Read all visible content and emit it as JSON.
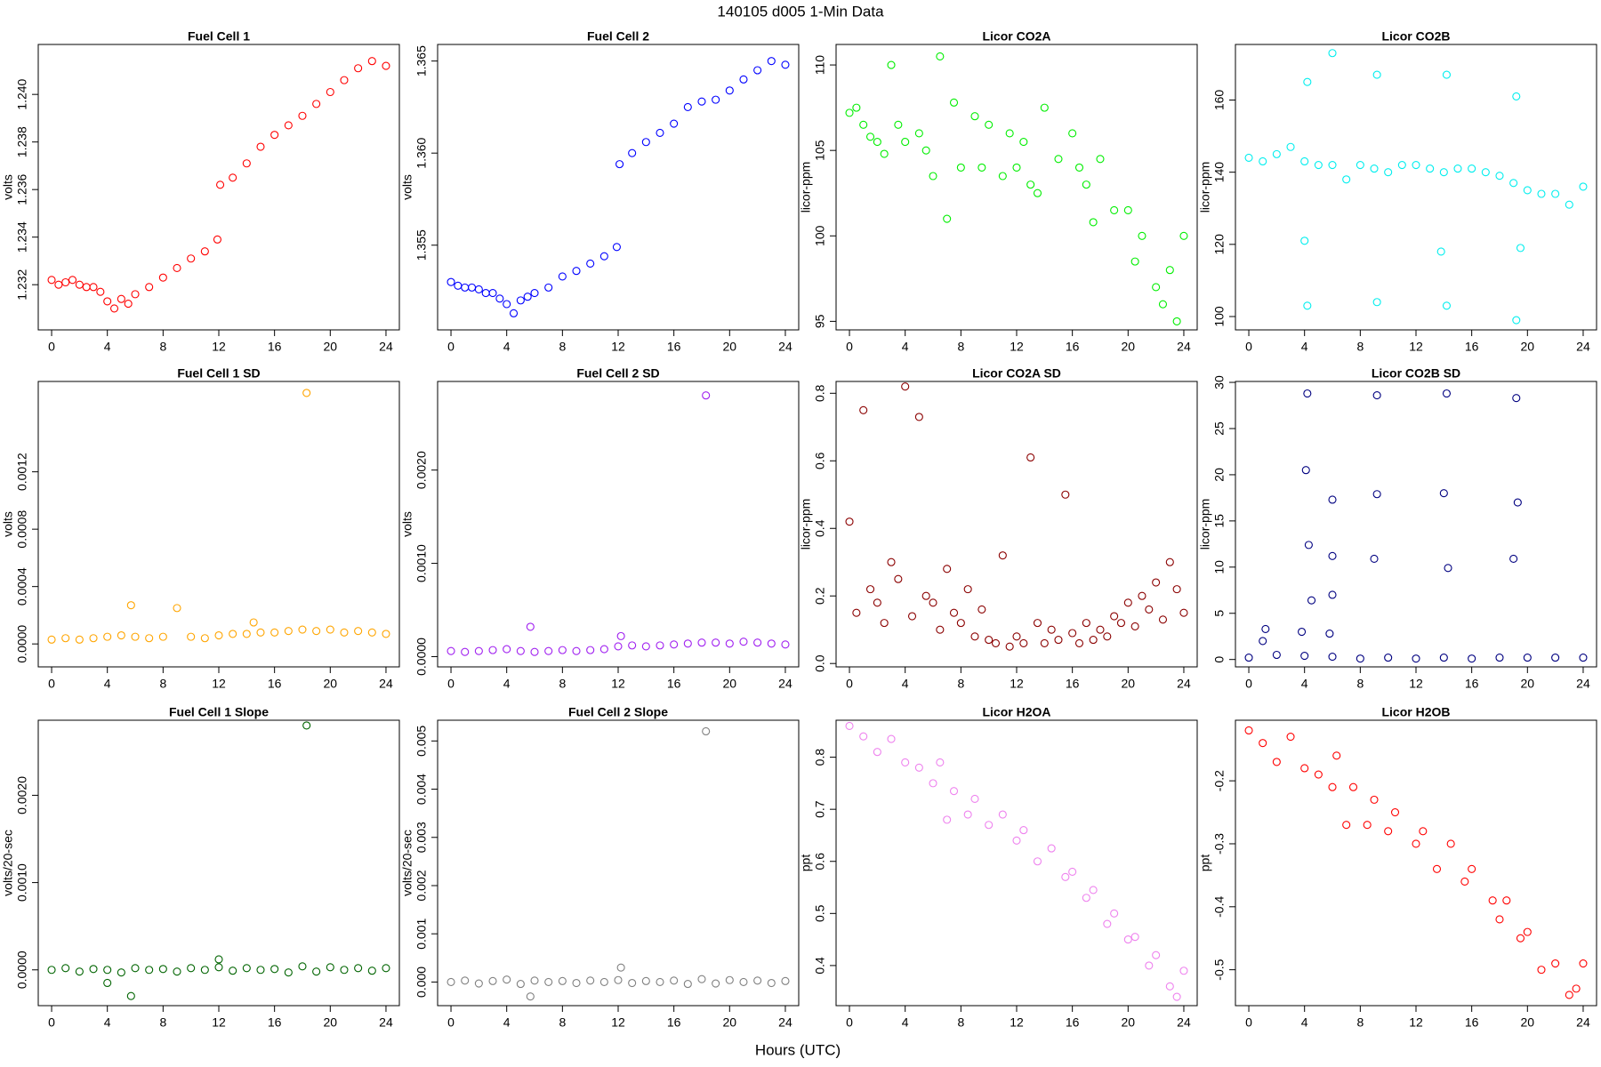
{
  "title": "140105   d005   1-Min Data",
  "x_label": "Hours (UTC)",
  "chart_data": [
    {
      "type": "scatter",
      "title": "Fuel Cell 1",
      "y_label": "volts",
      "color": "#ff0000",
      "x": [
        0,
        0.5,
        1,
        1.5,
        2,
        2.5,
        3,
        3.5,
        4,
        4.5,
        5,
        5.5,
        6,
        7,
        8,
        9,
        10,
        11,
        11.9,
        12.1,
        13,
        14,
        15,
        16,
        17,
        18,
        19,
        20,
        21,
        22,
        23,
        24
      ],
      "values": [
        1.2322,
        1.232,
        1.2321,
        1.2322,
        1.232,
        1.2319,
        1.2319,
        1.2317,
        1.2313,
        1.231,
        1.2314,
        1.2312,
        1.2316,
        1.2319,
        1.2323,
        1.2327,
        1.2331,
        1.2334,
        1.2339,
        1.2362,
        1.2365,
        1.2371,
        1.2378,
        1.2383,
        1.2387,
        1.2391,
        1.2396,
        1.2401,
        1.2406,
        1.2411,
        1.2414,
        1.2412
      ],
      "xlim": [
        -0.96,
        24.96
      ],
      "ylim": [
        1.2301,
        1.2421
      ],
      "xticks": [
        0,
        4,
        8,
        12,
        16,
        20,
        24
      ],
      "yticks": [
        1.232,
        1.234,
        1.236,
        1.238,
        {
          "value": 1.24,
          "label": "1.240"
        }
      ]
    },
    {
      "type": "scatter",
      "title": "Fuel Cell 2",
      "y_label": "volts",
      "color": "#0000ff",
      "x": [
        0,
        0.5,
        1,
        1.5,
        2,
        2.5,
        3,
        3.5,
        4,
        4.5,
        5,
        5.5,
        6,
        7,
        8,
        9,
        10,
        11,
        11.9,
        12.1,
        13,
        14,
        15,
        16,
        17,
        18,
        19,
        20,
        21,
        22,
        23,
        24
      ],
      "values": [
        1.353,
        1.3528,
        1.3527,
        1.3527,
        1.3526,
        1.3524,
        1.3524,
        1.3521,
        1.3518,
        1.3513,
        1.352,
        1.3522,
        1.3524,
        1.3527,
        1.3533,
        1.3536,
        1.354,
        1.3544,
        1.3549,
        1.3594,
        1.36,
        1.3606,
        1.3611,
        1.3616,
        1.3625,
        1.3628,
        1.3629,
        1.3634,
        1.364,
        1.3645,
        1.365,
        1.3648
      ],
      "xlim": [
        -0.96,
        24.96
      ],
      "ylim": [
        1.3504,
        1.3659
      ],
      "xticks": [
        0,
        4,
        8,
        12,
        16,
        20,
        24
      ],
      "yticks": [
        1.355,
        {
          "value": 1.36,
          "label": "1.360"
        },
        1.365
      ]
    },
    {
      "type": "scatter",
      "title": "Licor CO2A",
      "y_label": "licor-ppm",
      "color": "#00ee00",
      "x": [
        0,
        0.5,
        1,
        1.5,
        2,
        2.5,
        3,
        3.5,
        4,
        5,
        5.5,
        6,
        6.5,
        7,
        7.5,
        8,
        9,
        9.5,
        10,
        11,
        11.5,
        12,
        12.5,
        13,
        13.5,
        14,
        15,
        16,
        16.5,
        17,
        17.5,
        18,
        19,
        20,
        20.5,
        21,
        22,
        22.5,
        23,
        23.5,
        24
      ],
      "values": [
        107.2,
        107.5,
        106.5,
        105.8,
        105.5,
        104.8,
        110,
        106.5,
        105.5,
        106,
        105,
        103.5,
        110.5,
        101,
        107.8,
        104,
        107,
        104,
        106.5,
        103.5,
        106,
        104,
        105.5,
        103,
        102.5,
        107.5,
        104.5,
        106,
        104,
        103,
        100.8,
        104.5,
        101.5,
        101.5,
        98.5,
        100,
        97,
        96,
        98,
        95,
        100
      ],
      "xlim": [
        -0.96,
        24.96
      ],
      "ylim": [
        94.5,
        111.2
      ],
      "xticks": [
        0,
        4,
        8,
        12,
        16,
        20,
        24
      ],
      "yticks": [
        95,
        100,
        105,
        110
      ]
    },
    {
      "type": "scatter",
      "title": "Licor CO2B",
      "y_label": "licor-ppm",
      "color": "#00eeee",
      "x": [
        0,
        1,
        2,
        3,
        4,
        5,
        6,
        7,
        8,
        9,
        10,
        11,
        12,
        13,
        14,
        15,
        16,
        17,
        18,
        19,
        20,
        21,
        22,
        23,
        24,
        4.2,
        4.2,
        6,
        9.2,
        9.2,
        14.2,
        14.2,
        19.2,
        19.2,
        4,
        13.8,
        19.5
      ],
      "values": [
        144,
        143,
        145,
        147,
        143,
        142,
        142,
        138,
        142,
        141,
        140,
        142,
        142,
        141,
        140,
        141,
        141,
        140,
        139,
        137,
        135,
        134,
        134,
        131,
        136,
        165,
        103,
        173,
        167,
        104,
        167,
        103,
        161,
        99,
        121,
        118,
        119
      ],
      "xlim": [
        -0.96,
        24.96
      ],
      "ylim": [
        96.3,
        175.4
      ],
      "xticks": [
        0,
        4,
        8,
        12,
        16,
        20,
        24
      ],
      "yticks": [
        100,
        120,
        140,
        160
      ]
    },
    {
      "type": "scatter",
      "title": "Fuel Cell 1 SD",
      "y_label": "volts",
      "color": "#ffa500",
      "x": [
        0,
        1,
        2,
        3,
        4,
        5,
        5.7,
        6,
        7,
        8,
        9,
        10,
        11,
        12,
        13,
        14,
        14.5,
        15,
        16,
        17,
        18,
        18.3,
        19,
        20,
        21,
        22,
        23,
        24
      ],
      "values": [
        3e-05,
        4e-05,
        3e-05,
        4e-05,
        5e-05,
        6e-05,
        0.00027,
        5e-05,
        4e-05,
        5e-05,
        0.00025,
        5e-05,
        4e-05,
        6e-05,
        7e-05,
        7e-05,
        0.00015,
        8e-05,
        8e-05,
        9e-05,
        0.0001,
        0.00175,
        9e-05,
        0.0001,
        8e-05,
        9e-05,
        8e-05,
        7e-05
      ],
      "xlim": [
        -0.96,
        24.96
      ],
      "ylim": [
        -0.00016,
        0.00183
      ],
      "xticks": [
        0,
        4,
        8,
        12,
        16,
        20,
        24
      ],
      "yticks": [
        {
          "value": 0,
          "label": "0.0000"
        },
        0.0004,
        0.0008,
        0.0012
      ]
    },
    {
      "type": "scatter",
      "title": "Fuel Cell 2 SD",
      "y_label": "volts",
      "color": "#a020f0",
      "x": [
        0,
        1,
        2,
        3,
        4,
        5,
        5.7,
        6,
        7,
        8,
        9,
        10,
        11,
        12,
        12.2,
        13,
        14,
        15,
        16,
        17,
        18,
        18.3,
        19,
        20,
        21,
        22,
        23,
        24
      ],
      "values": [
        6e-05,
        5e-05,
        6e-05,
        7e-05,
        8e-05,
        6e-05,
        0.00032,
        5e-05,
        6e-05,
        7e-05,
        6e-05,
        7e-05,
        8e-05,
        0.00011,
        0.00022,
        0.00012,
        0.00011,
        0.00012,
        0.00013,
        0.00014,
        0.00015,
        0.0028,
        0.00015,
        0.00014,
        0.00016,
        0.00015,
        0.00014,
        0.00013
      ],
      "xlim": [
        -0.96,
        24.96
      ],
      "ylim": [
        -0.00011,
        0.00295
      ],
      "xticks": [
        0,
        4,
        8,
        12,
        16,
        20,
        24
      ],
      "yticks": [
        {
          "value": 0,
          "label": "0.0000"
        },
        {
          "value": 0.001,
          "label": "0.0010"
        },
        {
          "value": 0.002,
          "label": "0.0020"
        }
      ]
    },
    {
      "type": "scatter",
      "title": "Licor CO2A SD",
      "y_label": "licor-ppm",
      "color": "#8b0000",
      "x": [
        0,
        0.5,
        1,
        1.5,
        2,
        2.5,
        3,
        3.5,
        4,
        4.5,
        5,
        5.5,
        6,
        6.5,
        7,
        7.5,
        8,
        8.5,
        9,
        9.5,
        10,
        10.5,
        11,
        11.5,
        12,
        12.5,
        13,
        13.5,
        14,
        14.5,
        15,
        15.5,
        16,
        16.5,
        17,
        17.5,
        18,
        18.5,
        19,
        19.5,
        20,
        20.5,
        21,
        21.5,
        22,
        22.5,
        23,
        23.5,
        24
      ],
      "values": [
        0.42,
        0.15,
        0.75,
        0.22,
        0.18,
        0.12,
        0.3,
        0.25,
        0.82,
        0.14,
        0.73,
        0.2,
        0.18,
        0.1,
        0.28,
        0.15,
        0.12,
        0.22,
        0.08,
        0.16,
        0.07,
        0.06,
        0.32,
        0.05,
        0.08,
        0.06,
        0.61,
        0.12,
        0.06,
        0.1,
        0.07,
        0.5,
        0.09,
        0.06,
        0.12,
        0.07,
        0.1,
        0.08,
        0.14,
        0.12,
        0.18,
        0.11,
        0.2,
        0.16,
        0.24,
        0.13,
        0.3,
        0.22,
        0.15
      ],
      "xlim": [
        -0.96,
        24.96
      ],
      "ylim": [
        -0.01,
        0.835
      ],
      "xticks": [
        0,
        4,
        8,
        12,
        16,
        20,
        24
      ],
      "yticks": [
        {
          "value": 0,
          "label": "0.0"
        },
        0.2,
        0.4,
        0.6,
        0.8
      ]
    },
    {
      "type": "scatter",
      "title": "Licor CO2B SD",
      "y_label": "licor-ppm",
      "color": "#000080",
      "x": [
        0,
        2,
        4,
        6,
        8,
        10,
        12,
        14,
        16,
        18,
        20,
        22,
        24,
        4.2,
        4.1,
        4.3,
        4.5,
        6,
        6,
        6,
        9.2,
        9.2,
        9,
        14.2,
        14,
        14.3,
        19.2,
        19.3,
        19,
        1.2,
        1,
        5.8,
        3.8
      ],
      "values": [
        0.2,
        0.5,
        0.4,
        0.3,
        0.1,
        0.2,
        0.1,
        0.2,
        0.1,
        0.2,
        0.2,
        0.2,
        0.2,
        28.8,
        20.5,
        12.4,
        6.4,
        17.3,
        11.2,
        7,
        28.6,
        17.9,
        10.9,
        28.8,
        18,
        9.9,
        28.3,
        17,
        10.9,
        3.3,
        2,
        2.8,
        3
      ],
      "xlim": [
        -0.96,
        24.96
      ],
      "ylim": [
        -0.8,
        30.1
      ],
      "xticks": [
        0,
        4,
        8,
        12,
        16,
        20,
        24
      ],
      "yticks": [
        0,
        5,
        10,
        15,
        20,
        25,
        30
      ]
    },
    {
      "type": "scatter",
      "title": "Fuel Cell 1 Slope",
      "y_label": "volts/20-sec",
      "color": "#006400",
      "x": [
        0,
        1,
        2,
        3,
        4,
        5,
        6,
        7,
        8,
        9,
        10,
        11,
        12,
        13,
        14,
        15,
        16,
        17,
        18,
        19,
        20,
        21,
        22,
        23,
        24,
        18.3,
        5.7,
        4,
        12
      ],
      "values": [
        0,
        2e-05,
        -2e-05,
        1e-05,
        0,
        -3e-05,
        2e-05,
        0,
        1e-05,
        -2e-05,
        2e-05,
        0,
        3e-05,
        -1e-05,
        2e-05,
        0,
        1e-05,
        -3e-05,
        4e-05,
        -2e-05,
        3e-05,
        0,
        2e-05,
        -1e-05,
        2e-05,
        0.0028,
        -0.0003,
        -0.00015,
        0.00012
      ],
      "xlim": [
        -0.96,
        24.96
      ],
      "ylim": [
        -0.00041,
        0.00286
      ],
      "xticks": [
        0,
        4,
        8,
        12,
        16,
        20,
        24
      ],
      "yticks": [
        {
          "value": 0,
          "label": "0.0000"
        },
        {
          "value": 0.001,
          "label": "0.0010"
        },
        {
          "value": 0.002,
          "label": "0.0020"
        }
      ]
    },
    {
      "type": "scatter",
      "title": "Fuel Cell 2 Slope",
      "y_label": "volts/20-sec",
      "color": "#808080",
      "x": [
        0,
        1,
        2,
        3,
        4,
        5,
        6,
        7,
        8,
        9,
        10,
        11,
        12,
        13,
        14,
        15,
        16,
        17,
        18,
        19,
        20,
        21,
        22,
        23,
        24,
        18.3,
        5.7,
        12.2
      ],
      "values": [
        0,
        3e-05,
        -3e-05,
        2e-05,
        5e-05,
        -4e-05,
        3e-05,
        0,
        2e-05,
        -2e-05,
        3e-05,
        0,
        4e-05,
        -2e-05,
        2e-05,
        0,
        3e-05,
        -4e-05,
        6e-05,
        -3e-05,
        4e-05,
        0,
        3e-05,
        -2e-05,
        2e-05,
        0.0052,
        -0.0003,
        0.0003
      ],
      "xlim": [
        -0.96,
        24.96
      ],
      "ylim": [
        -0.00049,
        0.00543
      ],
      "xticks": [
        0,
        4,
        8,
        12,
        16,
        20,
        24
      ],
      "yticks": [
        {
          "value": 0,
          "label": "0.000"
        },
        0.001,
        0.002,
        0.003,
        0.004,
        0.005
      ]
    },
    {
      "type": "scatter",
      "title": "Licor H2OA",
      "y_label": "ppt",
      "color": "#ee82ee",
      "x": [
        0,
        1,
        2,
        3,
        4,
        5,
        6,
        6.5,
        7,
        7.5,
        8.5,
        9,
        10,
        11,
        12,
        12.5,
        13.5,
        14.5,
        15.5,
        16,
        17,
        17.5,
        18.5,
        19,
        20,
        20.5,
        21.5,
        22,
        23,
        23.5,
        24
      ],
      "values": [
        0.86,
        0.84,
        0.81,
        0.835,
        0.79,
        0.78,
        0.75,
        0.79,
        0.68,
        0.735,
        0.69,
        0.72,
        0.67,
        0.69,
        0.64,
        0.66,
        0.6,
        0.625,
        0.57,
        0.58,
        0.53,
        0.545,
        0.48,
        0.5,
        0.45,
        0.455,
        0.4,
        0.42,
        0.36,
        0.34,
        0.39
      ],
      "xlim": [
        -0.96,
        24.96
      ],
      "ylim": [
        0.323,
        0.871
      ],
      "xticks": [
        0,
        4,
        8,
        12,
        16,
        20,
        24
      ],
      "yticks": [
        0.4,
        0.5,
        0.6,
        0.7,
        0.8
      ]
    },
    {
      "type": "scatter",
      "title": "Licor H2OB",
      "y_label": "ppt",
      "color": "#ff0000",
      "x": [
        0,
        1,
        2,
        3,
        4,
        5,
        6,
        6.3,
        7,
        7.5,
        8.5,
        9,
        10,
        10.5,
        12,
        12.5,
        13.5,
        14.5,
        15.5,
        16,
        17.5,
        18,
        18.5,
        19.5,
        20,
        21,
        22,
        23,
        23.5,
        24
      ],
      "values": [
        -0.12,
        -0.14,
        -0.17,
        -0.13,
        -0.18,
        -0.19,
        -0.21,
        -0.16,
        -0.27,
        -0.21,
        -0.27,
        -0.23,
        -0.28,
        -0.25,
        -0.3,
        -0.28,
        -0.34,
        -0.3,
        -0.36,
        -0.34,
        -0.39,
        -0.42,
        -0.39,
        -0.45,
        -0.44,
        -0.5,
        -0.49,
        -0.54,
        -0.53,
        -0.49
      ],
      "xlim": [
        -0.96,
        24.96
      ],
      "ylim": [
        -0.557,
        -0.1038
      ],
      "xticks": [
        0,
        4,
        8,
        12,
        16,
        20,
        24
      ],
      "yticks": [
        -0.5,
        -0.4,
        -0.3,
        -0.2
      ]
    }
  ]
}
